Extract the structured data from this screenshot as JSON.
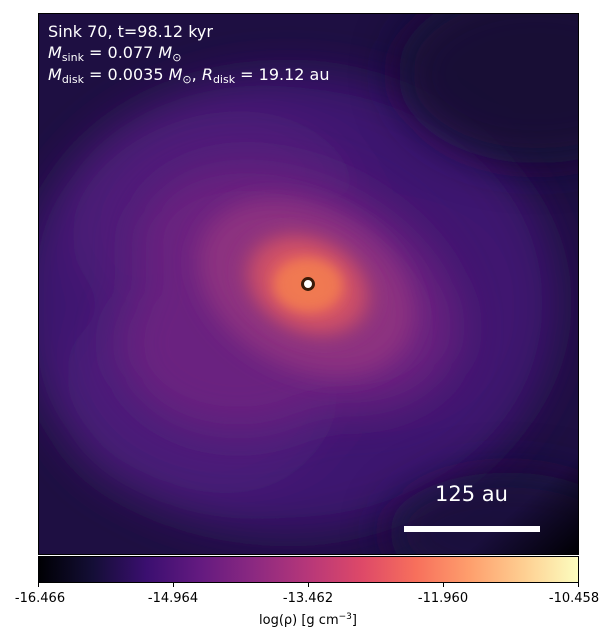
{
  "annotation": {
    "line1": "Sink 70, t=98.12 kyr",
    "sink_mass_symbol": "M",
    "sink_mass_sub": "sink",
    "sink_mass_value": " = 0.077 ",
    "solar_symbol": "M",
    "solar_sub": "⊙",
    "disk_mass_symbol": "M",
    "disk_mass_sub": "disk",
    "disk_mass_value": " = 0.0035 ",
    "disk_radius_symbol": "R",
    "disk_radius_sub": "disk",
    "disk_radius_value": " = 19.12 au",
    "separator": ", "
  },
  "scale_bar": {
    "label": "125 au"
  },
  "colorbar": {
    "colormap": "magma",
    "min": -16.466,
    "max": -10.458,
    "ticks": [
      "-16.466",
      "-14.964",
      "-13.462",
      "-11.960",
      "-10.458"
    ],
    "label_prefix": "log(ρ) [g cm",
    "label_exp": "−3",
    "label_suffix": "]"
  },
  "sink_marker": {
    "fill": "#ffffff",
    "stroke": "#3a1a08"
  }
}
